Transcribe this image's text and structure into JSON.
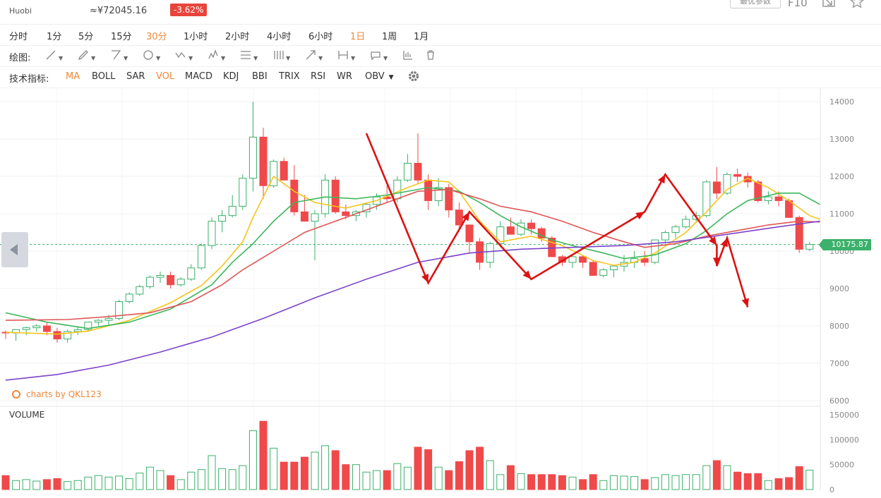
{
  "header": {
    "exchange": "Huobi",
    "cny_price": "≈¥72045.16",
    "change": "-3.62%",
    "param_button": "最优参数",
    "f10": "F10"
  },
  "timeframes": [
    "分时",
    "1分",
    "5分",
    "15分",
    "30分",
    "1小时",
    "2小时",
    "4小时",
    "6小时",
    "1日",
    "1周",
    "1月"
  ],
  "timeframes_active": [
    "30分",
    "1日"
  ],
  "drawing": {
    "label": "绘图:"
  },
  "indicators": {
    "label": "技术指标:",
    "items": [
      "MA",
      "BOLL",
      "SAR",
      "VOL",
      "MACD",
      "KDJ",
      "BBI",
      "TRIX",
      "RSI",
      "WR",
      "OBV"
    ],
    "active": [
      "MA",
      "VOL"
    ]
  },
  "watermark": "charts by QKL123",
  "volume_label": "VOLUME",
  "last_price": "10175.87",
  "colors": {
    "up": "#3bb16b",
    "down": "#f0494a",
    "ma5": "#f5c518",
    "ma10": "#3bb85a",
    "ma30": "#e05555",
    "ma60": "#7b44c9",
    "arrow": "#dd1111",
    "accent": "#f0883a"
  },
  "chart_data": {
    "type": "candlestick",
    "price_axis": {
      "ticks": [
        14000,
        13000,
        12000,
        11000,
        10000,
        9000,
        8000,
        7000,
        6000
      ],
      "ylim": [
        6000,
        14400
      ]
    },
    "volume_axis": {
      "ticks": [
        150000,
        100000,
        50000,
        0
      ],
      "ylim": [
        0,
        150000
      ]
    },
    "last_price": 10175.87,
    "candles": [
      [
        7830,
        7880,
        7650,
        7810,
        28000
      ],
      [
        7810,
        7900,
        7600,
        7900,
        18000
      ],
      [
        7900,
        7980,
        7750,
        7950,
        20000
      ],
      [
        7950,
        8050,
        7850,
        8000,
        17000
      ],
      [
        8000,
        8100,
        7750,
        7850,
        20000
      ],
      [
        7850,
        7950,
        7550,
        7650,
        22000
      ],
      [
        7650,
        7900,
        7550,
        7850,
        16000
      ],
      [
        7850,
        7980,
        7750,
        7900,
        18000
      ],
      [
        7900,
        8120,
        7850,
        8100,
        25000
      ],
      [
        8100,
        8180,
        8000,
        8150,
        28000
      ],
      [
        8150,
        8300,
        8000,
        8200,
        25000
      ],
      [
        8200,
        8700,
        8150,
        8650,
        27000
      ],
      [
        8650,
        8900,
        8600,
        8850,
        22000
      ],
      [
        8850,
        9100,
        8800,
        9050,
        33000
      ],
      [
        9050,
        9350,
        9000,
        9300,
        45000
      ],
      [
        9300,
        9450,
        9150,
        9350,
        38000
      ],
      [
        9350,
        9450,
        9000,
        9100,
        28000
      ],
      [
        9100,
        9300,
        9050,
        9250,
        20000
      ],
      [
        9250,
        9650,
        9200,
        9550,
        35000
      ],
      [
        9550,
        10200,
        9500,
        10150,
        40000
      ],
      [
        10150,
        10900,
        10050,
        10800,
        68000
      ],
      [
        10800,
        11100,
        10500,
        10950,
        42000
      ],
      [
        10950,
        11500,
        10900,
        11200,
        40000
      ],
      [
        11200,
        12050,
        11100,
        11950,
        48000
      ],
      [
        11950,
        14000,
        11600,
        13050,
        118000
      ],
      [
        13050,
        13300,
        11400,
        11750,
        137000
      ],
      [
        11750,
        12450,
        11700,
        12400,
        83000
      ],
      [
        12400,
        12500,
        11900,
        11900,
        55000
      ],
      [
        11900,
        12300,
        10950,
        11050,
        55000
      ],
      [
        11050,
        11500,
        10800,
        10800,
        65000
      ],
      [
        10800,
        11100,
        9750,
        11000,
        75000
      ],
      [
        11000,
        12050,
        10900,
        11900,
        88000
      ],
      [
        11900,
        12000,
        11000,
        11050,
        78000
      ],
      [
        11050,
        11250,
        10850,
        10950,
        50000
      ],
      [
        10950,
        11100,
        10800,
        11050,
        50000
      ],
      [
        11050,
        11300,
        10900,
        11250,
        35000
      ],
      [
        11250,
        11550,
        11100,
        11450,
        38000
      ],
      [
        11450,
        11750,
        11300,
        11400,
        38000
      ],
      [
        11400,
        12000,
        11300,
        11900,
        52000
      ],
      [
        11900,
        12600,
        11850,
        12350,
        45000
      ],
      [
        12350,
        13150,
        11800,
        11900,
        85000
      ],
      [
        11900,
        12050,
        11100,
        11350,
        80000
      ],
      [
        11350,
        11950,
        11200,
        11700,
        45000
      ],
      [
        11700,
        11800,
        10900,
        11100,
        38000
      ],
      [
        11100,
        11300,
        10600,
        10700,
        56000
      ],
      [
        10700,
        10700,
        9950,
        10250,
        78000
      ],
      [
        10250,
        10350,
        9500,
        9700,
        85000
      ],
      [
        9700,
        10250,
        9550,
        10200,
        58000
      ],
      [
        10200,
        10800,
        10100,
        10650,
        30000
      ],
      [
        10650,
        10900,
        10500,
        10450,
        48000
      ],
      [
        10450,
        10850,
        10400,
        10750,
        32000
      ],
      [
        10750,
        10850,
        10450,
        10600,
        30000
      ],
      [
        10600,
        10650,
        10250,
        10350,
        30000
      ],
      [
        10350,
        10400,
        9850,
        9850,
        30000
      ],
      [
        9850,
        9900,
        9600,
        9700,
        28000
      ],
      [
        9700,
        9900,
        9550,
        9850,
        25000
      ],
      [
        9850,
        9900,
        9550,
        9700,
        20000
      ],
      [
        9700,
        9750,
        9350,
        9350,
        30000
      ],
      [
        9350,
        9550,
        9300,
        9500,
        18000
      ],
      [
        9500,
        9600,
        9300,
        9600,
        28000
      ],
      [
        9600,
        9900,
        9450,
        9700,
        27000
      ],
      [
        9700,
        10000,
        9550,
        9800,
        26000
      ],
      [
        9800,
        10000,
        9600,
        9700,
        20000
      ],
      [
        9700,
        10300,
        9650,
        10300,
        24000
      ],
      [
        10300,
        10550,
        10200,
        10500,
        30000
      ],
      [
        10500,
        10700,
        10350,
        10650,
        28000
      ],
      [
        10650,
        10950,
        10600,
        10850,
        30000
      ],
      [
        10850,
        11050,
        10750,
        10950,
        30000
      ],
      [
        10950,
        11900,
        10900,
        11850,
        48000
      ],
      [
        11850,
        12250,
        11400,
        11550,
        58000
      ],
      [
        11550,
        12100,
        11500,
        12050,
        48000
      ],
      [
        12050,
        12200,
        11850,
        12000,
        35000
      ],
      [
        12000,
        12100,
        11700,
        11850,
        32000
      ],
      [
        11850,
        11900,
        11300,
        11350,
        32000
      ],
      [
        11350,
        11600,
        11250,
        11450,
        18000
      ],
      [
        11450,
        11600,
        11200,
        11350,
        22000
      ],
      [
        11350,
        11400,
        10900,
        10900,
        24000
      ],
      [
        10900,
        10950,
        9950,
        10050,
        46000
      ],
      [
        10050,
        10250,
        10000,
        10180,
        39000
      ]
    ],
    "ma_series": [
      {
        "name": "MA5",
        "color": "#f5c518",
        "points": [
          [
            0,
            7830
          ],
          [
            5,
            7780
          ],
          [
            8,
            7860
          ],
          [
            12,
            8150
          ],
          [
            16,
            8620
          ],
          [
            19,
            9080
          ],
          [
            21,
            9600
          ],
          [
            23,
            10250
          ],
          [
            24,
            10900
          ],
          [
            26,
            12000
          ],
          [
            28,
            11600
          ],
          [
            30,
            11300
          ],
          [
            33,
            11150
          ],
          [
            36,
            11350
          ],
          [
            39,
            11700
          ],
          [
            41,
            11900
          ],
          [
            43,
            11850
          ],
          [
            44,
            11600
          ],
          [
            46,
            10800
          ],
          [
            48,
            10250
          ],
          [
            51,
            10400
          ],
          [
            54,
            10150
          ],
          [
            57,
            9750
          ],
          [
            59,
            9620
          ],
          [
            61,
            9700
          ],
          [
            63,
            9950
          ],
          [
            66,
            10500
          ],
          [
            68,
            11050
          ],
          [
            70,
            11650
          ],
          [
            72,
            11950
          ],
          [
            74,
            11700
          ],
          [
            76,
            11350
          ],
          [
            78,
            10950
          ],
          [
            79,
            10850
          ]
        ]
      },
      {
        "name": "MA10",
        "color": "#3bb85a",
        "points": [
          [
            0,
            8350
          ],
          [
            4,
            8100
          ],
          [
            8,
            7930
          ],
          [
            12,
            8100
          ],
          [
            16,
            8450
          ],
          [
            20,
            9100
          ],
          [
            22,
            9700
          ],
          [
            24,
            10200
          ],
          [
            26,
            10800
          ],
          [
            28,
            11300
          ],
          [
            31,
            11450
          ],
          [
            34,
            11400
          ],
          [
            37,
            11500
          ],
          [
            41,
            11700
          ],
          [
            44,
            11600
          ],
          [
            46,
            11300
          ],
          [
            48,
            10950
          ],
          [
            50,
            10650
          ],
          [
            53,
            10300
          ],
          [
            55,
            10150
          ],
          [
            58,
            9950
          ],
          [
            60,
            9800
          ],
          [
            63,
            9900
          ],
          [
            66,
            10200
          ],
          [
            68,
            10550
          ],
          [
            70,
            11000
          ],
          [
            72,
            11350
          ],
          [
            75,
            11550
          ],
          [
            77,
            11550
          ],
          [
            79,
            11250
          ]
        ]
      },
      {
        "name": "MA30",
        "color": "#e05555",
        "points": [
          [
            0,
            8150
          ],
          [
            6,
            8170
          ],
          [
            10,
            8250
          ],
          [
            14,
            8350
          ],
          [
            18,
            8650
          ],
          [
            21,
            9100
          ],
          [
            23,
            9500
          ],
          [
            26,
            10000
          ],
          [
            29,
            10500
          ],
          [
            33,
            10900
          ],
          [
            36,
            11200
          ],
          [
            40,
            11600
          ],
          [
            43,
            11650
          ],
          [
            46,
            11400
          ],
          [
            48,
            11200
          ],
          [
            51,
            11050
          ],
          [
            54,
            10800
          ],
          [
            57,
            10500
          ],
          [
            60,
            10250
          ],
          [
            62,
            10100
          ],
          [
            65,
            10200
          ],
          [
            68,
            10400
          ],
          [
            71,
            10550
          ],
          [
            74,
            10700
          ],
          [
            77,
            10800
          ],
          [
            79,
            10780
          ]
        ]
      },
      {
        "name": "MA60",
        "color": "#7b44c9",
        "points": [
          [
            0,
            6550
          ],
          [
            5,
            6700
          ],
          [
            10,
            6950
          ],
          [
            15,
            7300
          ],
          [
            20,
            7700
          ],
          [
            25,
            8200
          ],
          [
            30,
            8750
          ],
          [
            35,
            9250
          ],
          [
            40,
            9700
          ],
          [
            45,
            9950
          ],
          [
            50,
            10050
          ],
          [
            55,
            10100
          ],
          [
            60,
            10150
          ],
          [
            65,
            10250
          ],
          [
            70,
            10450
          ],
          [
            75,
            10650
          ],
          [
            79,
            10800
          ]
        ]
      }
    ],
    "annotation_arrows": [
      [
        [
          35,
          13150
        ],
        [
          41,
          9150
        ],
        [
          45,
          11050
        ],
        [
          51,
          9250
        ],
        [
          62,
          11050
        ],
        [
          64,
          12050
        ],
        [
          69,
          10150
        ],
        [
          69,
          9600
        ],
        [
          70,
          10350
        ],
        [
          72,
          8500
        ]
      ]
    ]
  }
}
